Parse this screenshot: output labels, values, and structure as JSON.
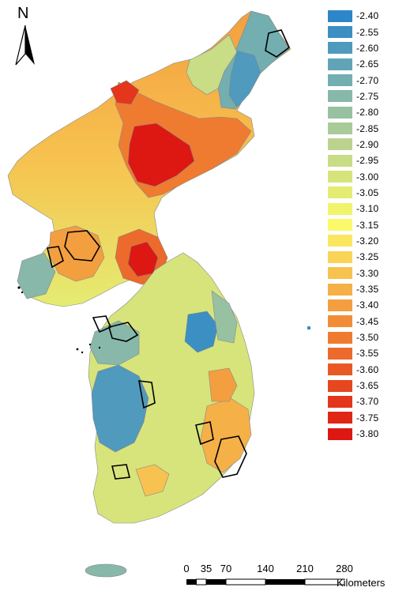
{
  "north_arrow": {
    "letter": "N",
    "icon": "north-arrow-icon"
  },
  "legend": {
    "items": [
      {
        "label": "-2.40",
        "color": "#2c86c8"
      },
      {
        "label": "-2.55",
        "color": "#3b8fc2"
      },
      {
        "label": "-2.60",
        "color": "#4f9abd"
      },
      {
        "label": "-2.65",
        "color": "#61a4b7"
      },
      {
        "label": "-2.70",
        "color": "#73aeb1"
      },
      {
        "label": "-2.75",
        "color": "#87b8aa"
      },
      {
        "label": "-2.80",
        "color": "#98c1a2"
      },
      {
        "label": "-2.85",
        "color": "#a9ca99"
      },
      {
        "label": "-2.90",
        "color": "#bbd38f"
      },
      {
        "label": "-2.95",
        "color": "#c9dc86"
      },
      {
        "label": "-3.00",
        "color": "#d7e47c"
      },
      {
        "label": "-3.05",
        "color": "#e4ec72"
      },
      {
        "label": "-3.10",
        "color": "#f1f46b"
      },
      {
        "label": "-3.15",
        "color": "#fbf86a"
      },
      {
        "label": "-3.20",
        "color": "#fbe660"
      },
      {
        "label": "-3.25",
        "color": "#f9d457"
      },
      {
        "label": "-3.30",
        "color": "#f7c24f"
      },
      {
        "label": "-3.35",
        "color": "#f5b047"
      },
      {
        "label": "-3.40",
        "color": "#f39f3f"
      },
      {
        "label": "-3.45",
        "color": "#f18d38"
      },
      {
        "label": "-3.50",
        "color": "#ef7b31"
      },
      {
        "label": "-3.55",
        "color": "#ec6a2b"
      },
      {
        "label": "-3.60",
        "color": "#e95925"
      },
      {
        "label": "-3.65",
        "color": "#e6471f"
      },
      {
        "label": "-3.70",
        "color": "#e3361a"
      },
      {
        "label": "-3.75",
        "color": "#e02716"
      },
      {
        "label": "-3.80",
        "color": "#dd1812"
      }
    ]
  },
  "scale_bar": {
    "ticks": [
      "0",
      "35",
      "70",
      "140",
      "210",
      "280"
    ],
    "unit": "Kilometers"
  }
}
